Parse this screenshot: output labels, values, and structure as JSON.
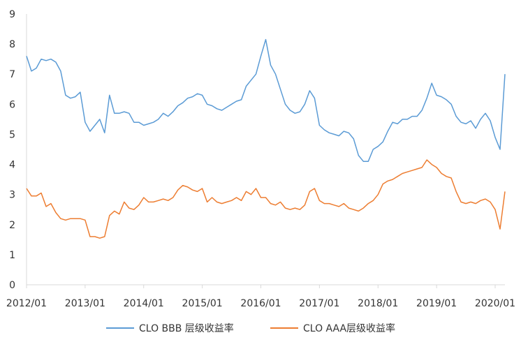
{
  "chart_data": {
    "type": "line",
    "title": "",
    "xlabel": "",
    "ylabel": "",
    "xlim": [
      "2012/01",
      "2020/03"
    ],
    "ylim": [
      0,
      9
    ],
    "y_ticks": [
      "0",
      "1",
      "2",
      "3",
      "4",
      "5",
      "6",
      "7",
      "8",
      "9"
    ],
    "x_ticks": [
      "2012/01",
      "2013/01",
      "2014/01",
      "2015/01",
      "2016/01",
      "2017/01",
      "2018/01",
      "2019/01",
      "2020/01"
    ],
    "grid": false,
    "legend_position": "bottom",
    "series": [
      {
        "name": "CLO BBB 层级收益率",
        "color": "#5b9bd5",
        "points": [
          [
            "2012/01",
            7.6
          ],
          [
            "2012/02",
            7.1
          ],
          [
            "2012/03",
            7.2
          ],
          [
            "2012/04",
            7.5
          ],
          [
            "2012/05",
            7.45
          ],
          [
            "2012/06",
            7.5
          ],
          [
            "2012/07",
            7.4
          ],
          [
            "2012/08",
            7.1
          ],
          [
            "2012/09",
            6.3
          ],
          [
            "2012/10",
            6.2
          ],
          [
            "2012/11",
            6.25
          ],
          [
            "2012/12",
            6.4
          ],
          [
            "2013/01",
            5.4
          ],
          [
            "2013/02",
            5.1
          ],
          [
            "2013/03",
            5.3
          ],
          [
            "2013/04",
            5.5
          ],
          [
            "2013/05",
            5.05
          ],
          [
            "2013/06",
            6.3
          ],
          [
            "2013/07",
            5.7
          ],
          [
            "2013/08",
            5.7
          ],
          [
            "2013/09",
            5.75
          ],
          [
            "2013/10",
            5.7
          ],
          [
            "2013/11",
            5.4
          ],
          [
            "2013/12",
            5.4
          ],
          [
            "2014/01",
            5.3
          ],
          [
            "2014/02",
            5.35
          ],
          [
            "2014/03",
            5.4
          ],
          [
            "2014/04",
            5.5
          ],
          [
            "2014/05",
            5.7
          ],
          [
            "2014/06",
            5.6
          ],
          [
            "2014/07",
            5.75
          ],
          [
            "2014/08",
            5.95
          ],
          [
            "2014/09",
            6.05
          ],
          [
            "2014/10",
            6.2
          ],
          [
            "2014/11",
            6.25
          ],
          [
            "2014/12",
            6.35
          ],
          [
            "2015/01",
            6.3
          ],
          [
            "2015/02",
            6.0
          ],
          [
            "2015/03",
            5.95
          ],
          [
            "2015/04",
            5.85
          ],
          [
            "2015/05",
            5.8
          ],
          [
            "2015/06",
            5.9
          ],
          [
            "2015/07",
            6.0
          ],
          [
            "2015/08",
            6.1
          ],
          [
            "2015/09",
            6.15
          ],
          [
            "2015/10",
            6.6
          ],
          [
            "2015/11",
            6.8
          ],
          [
            "2015/12",
            7.0
          ],
          [
            "2016/01",
            7.6
          ],
          [
            "2016/02",
            8.15
          ],
          [
            "2016/03",
            7.3
          ],
          [
            "2016/04",
            7.0
          ],
          [
            "2016/05",
            6.5
          ],
          [
            "2016/06",
            6.0
          ],
          [
            "2016/07",
            5.8
          ],
          [
            "2016/08",
            5.7
          ],
          [
            "2016/09",
            5.75
          ],
          [
            "2016/10",
            6.0
          ],
          [
            "2016/11",
            6.45
          ],
          [
            "2016/12",
            6.2
          ],
          [
            "2017/01",
            5.3
          ],
          [
            "2017/02",
            5.15
          ],
          [
            "2017/03",
            5.05
          ],
          [
            "2017/04",
            5.0
          ],
          [
            "2017/05",
            4.95
          ],
          [
            "2017/06",
            5.1
          ],
          [
            "2017/07",
            5.05
          ],
          [
            "2017/08",
            4.85
          ],
          [
            "2017/09",
            4.3
          ],
          [
            "2017/10",
            4.1
          ],
          [
            "2017/11",
            4.1
          ],
          [
            "2017/12",
            4.5
          ],
          [
            "2018/01",
            4.6
          ],
          [
            "2018/02",
            4.75
          ],
          [
            "2018/03",
            5.1
          ],
          [
            "2018/04",
            5.4
          ],
          [
            "2018/05",
            5.35
          ],
          [
            "2018/06",
            5.5
          ],
          [
            "2018/07",
            5.5
          ],
          [
            "2018/08",
            5.6
          ],
          [
            "2018/09",
            5.6
          ],
          [
            "2018/10",
            5.8
          ],
          [
            "2018/11",
            6.2
          ],
          [
            "2018/12",
            6.7
          ],
          [
            "2019/01",
            6.3
          ],
          [
            "2019/02",
            6.25
          ],
          [
            "2019/03",
            6.15
          ],
          [
            "2019/04",
            6.0
          ],
          [
            "2019/05",
            5.6
          ],
          [
            "2019/06",
            5.4
          ],
          [
            "2019/07",
            5.35
          ],
          [
            "2019/08",
            5.45
          ],
          [
            "2019/09",
            5.2
          ],
          [
            "2019/10",
            5.5
          ],
          [
            "2019/11",
            5.7
          ],
          [
            "2019/12",
            5.45
          ],
          [
            "2020/01",
            4.9
          ],
          [
            "2020/02",
            4.5
          ],
          [
            "2020/03",
            7.0
          ]
        ]
      },
      {
        "name": "CLO  AAA层级收益率",
        "color": "#ed7d31",
        "points": [
          [
            "2012/01",
            3.2
          ],
          [
            "2012/02",
            2.95
          ],
          [
            "2012/03",
            2.95
          ],
          [
            "2012/04",
            3.05
          ],
          [
            "2012/05",
            2.6
          ],
          [
            "2012/06",
            2.7
          ],
          [
            "2012/07",
            2.4
          ],
          [
            "2012/08",
            2.2
          ],
          [
            "2012/09",
            2.15
          ],
          [
            "2012/10",
            2.2
          ],
          [
            "2012/11",
            2.2
          ],
          [
            "2012/12",
            2.2
          ],
          [
            "2013/01",
            2.15
          ],
          [
            "2013/02",
            1.6
          ],
          [
            "2013/03",
            1.6
          ],
          [
            "2013/04",
            1.55
          ],
          [
            "2013/05",
            1.6
          ],
          [
            "2013/06",
            2.3
          ],
          [
            "2013/07",
            2.45
          ],
          [
            "2013/08",
            2.35
          ],
          [
            "2013/09",
            2.75
          ],
          [
            "2013/10",
            2.55
          ],
          [
            "2013/11",
            2.5
          ],
          [
            "2013/12",
            2.65
          ],
          [
            "2014/01",
            2.9
          ],
          [
            "2014/02",
            2.75
          ],
          [
            "2014/03",
            2.75
          ],
          [
            "2014/04",
            2.8
          ],
          [
            "2014/05",
            2.85
          ],
          [
            "2014/06",
            2.8
          ],
          [
            "2014/07",
            2.9
          ],
          [
            "2014/08",
            3.15
          ],
          [
            "2014/09",
            3.3
          ],
          [
            "2014/10",
            3.25
          ],
          [
            "2014/11",
            3.15
          ],
          [
            "2014/12",
            3.1
          ],
          [
            "2015/01",
            3.2
          ],
          [
            "2015/02",
            2.75
          ],
          [
            "2015/03",
            2.9
          ],
          [
            "2015/04",
            2.75
          ],
          [
            "2015/05",
            2.7
          ],
          [
            "2015/06",
            2.75
          ],
          [
            "2015/07",
            2.8
          ],
          [
            "2015/08",
            2.9
          ],
          [
            "2015/09",
            2.8
          ],
          [
            "2015/10",
            3.1
          ],
          [
            "2015/11",
            3.0
          ],
          [
            "2015/12",
            3.2
          ],
          [
            "2016/01",
            2.9
          ],
          [
            "2016/02",
            2.9
          ],
          [
            "2016/03",
            2.7
          ],
          [
            "2016/04",
            2.65
          ],
          [
            "2016/05",
            2.75
          ],
          [
            "2016/06",
            2.55
          ],
          [
            "2016/07",
            2.5
          ],
          [
            "2016/08",
            2.55
          ],
          [
            "2016/09",
            2.5
          ],
          [
            "2016/10",
            2.65
          ],
          [
            "2016/11",
            3.1
          ],
          [
            "2016/12",
            3.2
          ],
          [
            "2017/01",
            2.8
          ],
          [
            "2017/02",
            2.7
          ],
          [
            "2017/03",
            2.7
          ],
          [
            "2017/04",
            2.65
          ],
          [
            "2017/05",
            2.6
          ],
          [
            "2017/06",
            2.7
          ],
          [
            "2017/07",
            2.55
          ],
          [
            "2017/08",
            2.5
          ],
          [
            "2017/09",
            2.45
          ],
          [
            "2017/10",
            2.55
          ],
          [
            "2017/11",
            2.7
          ],
          [
            "2017/12",
            2.8
          ],
          [
            "2018/01",
            3.0
          ],
          [
            "2018/02",
            3.35
          ],
          [
            "2018/03",
            3.45
          ],
          [
            "2018/04",
            3.5
          ],
          [
            "2018/05",
            3.6
          ],
          [
            "2018/06",
            3.7
          ],
          [
            "2018/07",
            3.75
          ],
          [
            "2018/08",
            3.8
          ],
          [
            "2018/09",
            3.85
          ],
          [
            "2018/10",
            3.9
          ],
          [
            "2018/11",
            4.15
          ],
          [
            "2018/12",
            4.0
          ],
          [
            "2019/01",
            3.9
          ],
          [
            "2019/02",
            3.7
          ],
          [
            "2019/03",
            3.6
          ],
          [
            "2019/04",
            3.55
          ],
          [
            "2019/05",
            3.1
          ],
          [
            "2019/06",
            2.75
          ],
          [
            "2019/07",
            2.7
          ],
          [
            "2019/08",
            2.75
          ],
          [
            "2019/09",
            2.7
          ],
          [
            "2019/10",
            2.8
          ],
          [
            "2019/11",
            2.85
          ],
          [
            "2019/12",
            2.75
          ],
          [
            "2020/01",
            2.5
          ],
          [
            "2020/02",
            1.85
          ],
          [
            "2020/03",
            3.1
          ]
        ]
      }
    ]
  }
}
